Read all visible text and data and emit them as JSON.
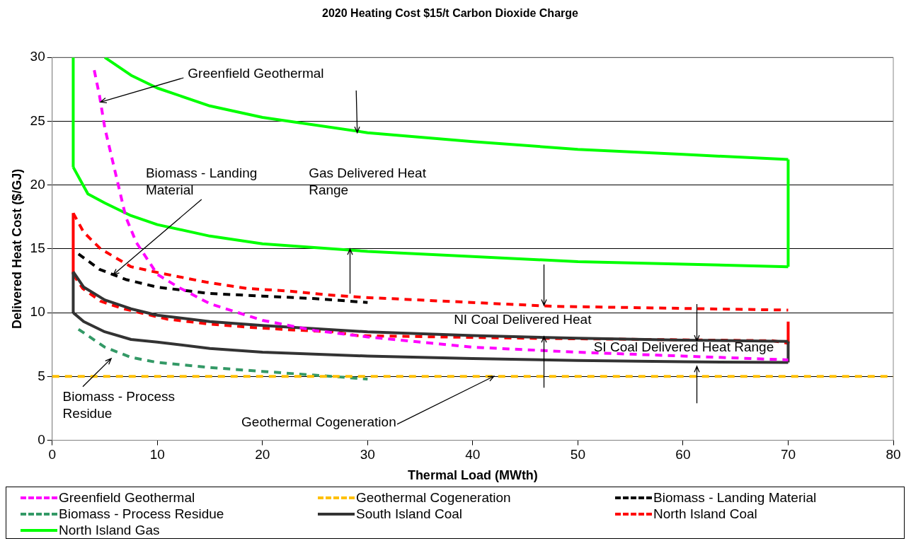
{
  "chart_data": {
    "type": "line",
    "title": "2020 Heating Cost $15/t Carbon Dioxide Charge",
    "xlabel": "Thermal Load (MWth)",
    "ylabel": "Delivered Heat Cost ($/GJ)",
    "xlim": [
      0,
      80
    ],
    "xticks": [
      0,
      10,
      20,
      30,
      40,
      50,
      60,
      70,
      80
    ],
    "ylim": [
      0,
      30
    ],
    "yticks": [
      0,
      5,
      10,
      15,
      20,
      25,
      30
    ],
    "grid": "y",
    "legend": "bottom",
    "marker": "none",
    "series": [
      {
        "name": "Greenfield Geothermal",
        "color": "#ff00ff",
        "line_style": "dashed",
        "x": [
          4,
          4.5,
          5,
          6,
          7,
          8,
          10,
          12,
          15,
          20,
          25,
          30,
          40,
          50,
          60,
          70
        ],
        "values": [
          29,
          27,
          24.5,
          21,
          17.5,
          15.5,
          13,
          12,
          10.7,
          9.4,
          8.6,
          8.1,
          7.3,
          6.9,
          6.6,
          6.3
        ]
      },
      {
        "name": "Geothermal Cogeneration",
        "color": "#ffc000",
        "line_style": "dashed",
        "x": [
          0,
          80
        ],
        "values": [
          5,
          5
        ]
      },
      {
        "name": "Biomass - Landing Material",
        "color": "#000000",
        "line_style": "dashed",
        "x": [
          2.5,
          4.5,
          7,
          10,
          15,
          20,
          25,
          30
        ],
        "values": [
          14.6,
          13.4,
          12.6,
          12,
          11.5,
          11.3,
          11.1,
          10.8
        ]
      },
      {
        "name": "Biomass - Process Residue",
        "color": "#339966",
        "line_style": "dashed",
        "x": [
          2.5,
          5,
          7.5,
          10,
          15,
          20,
          25,
          30
        ],
        "values": [
          8.7,
          7.3,
          6.5,
          6.1,
          5.7,
          5.4,
          5.1,
          4.8
        ]
      },
      {
        "name": "South Island Coal",
        "color": "#333333",
        "line_style": "solid",
        "x": [
          2,
          3,
          5,
          7.5,
          10,
          15,
          20,
          30,
          40,
          50,
          60,
          70
        ],
        "values": [
          13.2,
          12,
          11,
          10.3,
          9.8,
          9.3,
          9,
          8.5,
          8.2,
          8,
          7.85,
          7.75
        ]
      },
      {
        "name": "North Island Coal",
        "color": "#ff0000",
        "line_style": "dashed",
        "x": [
          2,
          3,
          4.6,
          7.5,
          10.3,
          14.6,
          18.5,
          22.4,
          26.2,
          29.6,
          47.6,
          70
        ],
        "values": [
          17.8,
          16.3,
          15,
          13.6,
          13.1,
          12.4,
          11.9,
          11.7,
          11.4,
          11.2,
          10.5,
          10.2
        ]
      },
      {
        "name": "North Island Gas",
        "color": "#00ff00",
        "line_style": "solid",
        "x": [
          5,
          7.5,
          10,
          15,
          20,
          30,
          40,
          50,
          60,
          70
        ],
        "values": [
          30,
          28.6,
          27.6,
          26.2,
          25.3,
          24.1,
          23.4,
          22.8,
          22.4,
          22
        ]
      },
      {
        "color": "#333333",
        "line_style": "solid",
        "x": [
          2,
          3,
          5,
          7.5,
          10,
          15,
          20,
          30,
          40,
          50,
          60,
          70
        ],
        "values": [
          10,
          9.3,
          8.5,
          7.9,
          7.7,
          7.2,
          6.9,
          6.6,
          6.4,
          6.25,
          6.15,
          6.1
        ]
      },
      {
        "color": "#333333",
        "line_style": "solid",
        "x": [
          2,
          2
        ],
        "values": [
          10,
          13.2
        ]
      },
      {
        "color": "#333333",
        "line_style": "solid",
        "x": [
          70,
          70
        ],
        "values": [
          6.1,
          7.75
        ]
      },
      {
        "color": "#ff0000",
        "line_style": "dashed",
        "x": [
          2,
          2.9,
          4.6,
          6.8,
          10.9,
          15,
          18.9,
          22.8,
          26.7,
          29.1,
          44.8,
          68.5,
          70
        ],
        "values": [
          13,
          11.9,
          10.9,
          10.3,
          9.5,
          9.1,
          8.85,
          8.65,
          8.5,
          8.2,
          8,
          7.8,
          7.6
        ]
      },
      {
        "color": "#ff0000",
        "line_style": "solid",
        "x": [
          2,
          2
        ],
        "values": [
          13,
          17.8
        ]
      },
      {
        "color": "#ff0000",
        "line_style": "solid",
        "x": [
          70,
          70
        ],
        "values": [
          7.6,
          9.3
        ]
      },
      {
        "color": "#00ff00",
        "line_style": "solid",
        "x": [
          2,
          3.4,
          5,
          7.5,
          10,
          15,
          20,
          30,
          40,
          50,
          60,
          70
        ],
        "values": [
          21.4,
          19.3,
          18.6,
          17.6,
          16.9,
          16,
          15.4,
          14.8,
          14.4,
          14,
          13.8,
          13.6
        ]
      },
      {
        "color": "#00ff00",
        "line_style": "solid",
        "x": [
          2,
          2
        ],
        "values": [
          21.4,
          30
        ]
      },
      {
        "color": "#00ff00",
        "line_style": "solid",
        "x": [
          70,
          70
        ],
        "values": [
          13.6,
          22
        ]
      }
    ],
    "annotations": [
      {
        "text": "Greenfield Geothermal",
        "x": 4.6,
        "y": 26.5
      },
      {
        "text": "Biomass - Landing Material",
        "x": 5.8,
        "y": 13
      },
      {
        "text": "Gas Delivered Heat Range",
        "x": 29,
        "y": 24.1
      },
      {
        "text": "NI Coal Delivered Heat",
        "x": 46.8,
        "y": 10.6
      },
      "SI Coal Delivered Heat Range",
      "Biomass - Process Residue",
      {
        "text": "Geothermal Cogeneration",
        "x": 42,
        "y": 5
      }
    ]
  }
}
